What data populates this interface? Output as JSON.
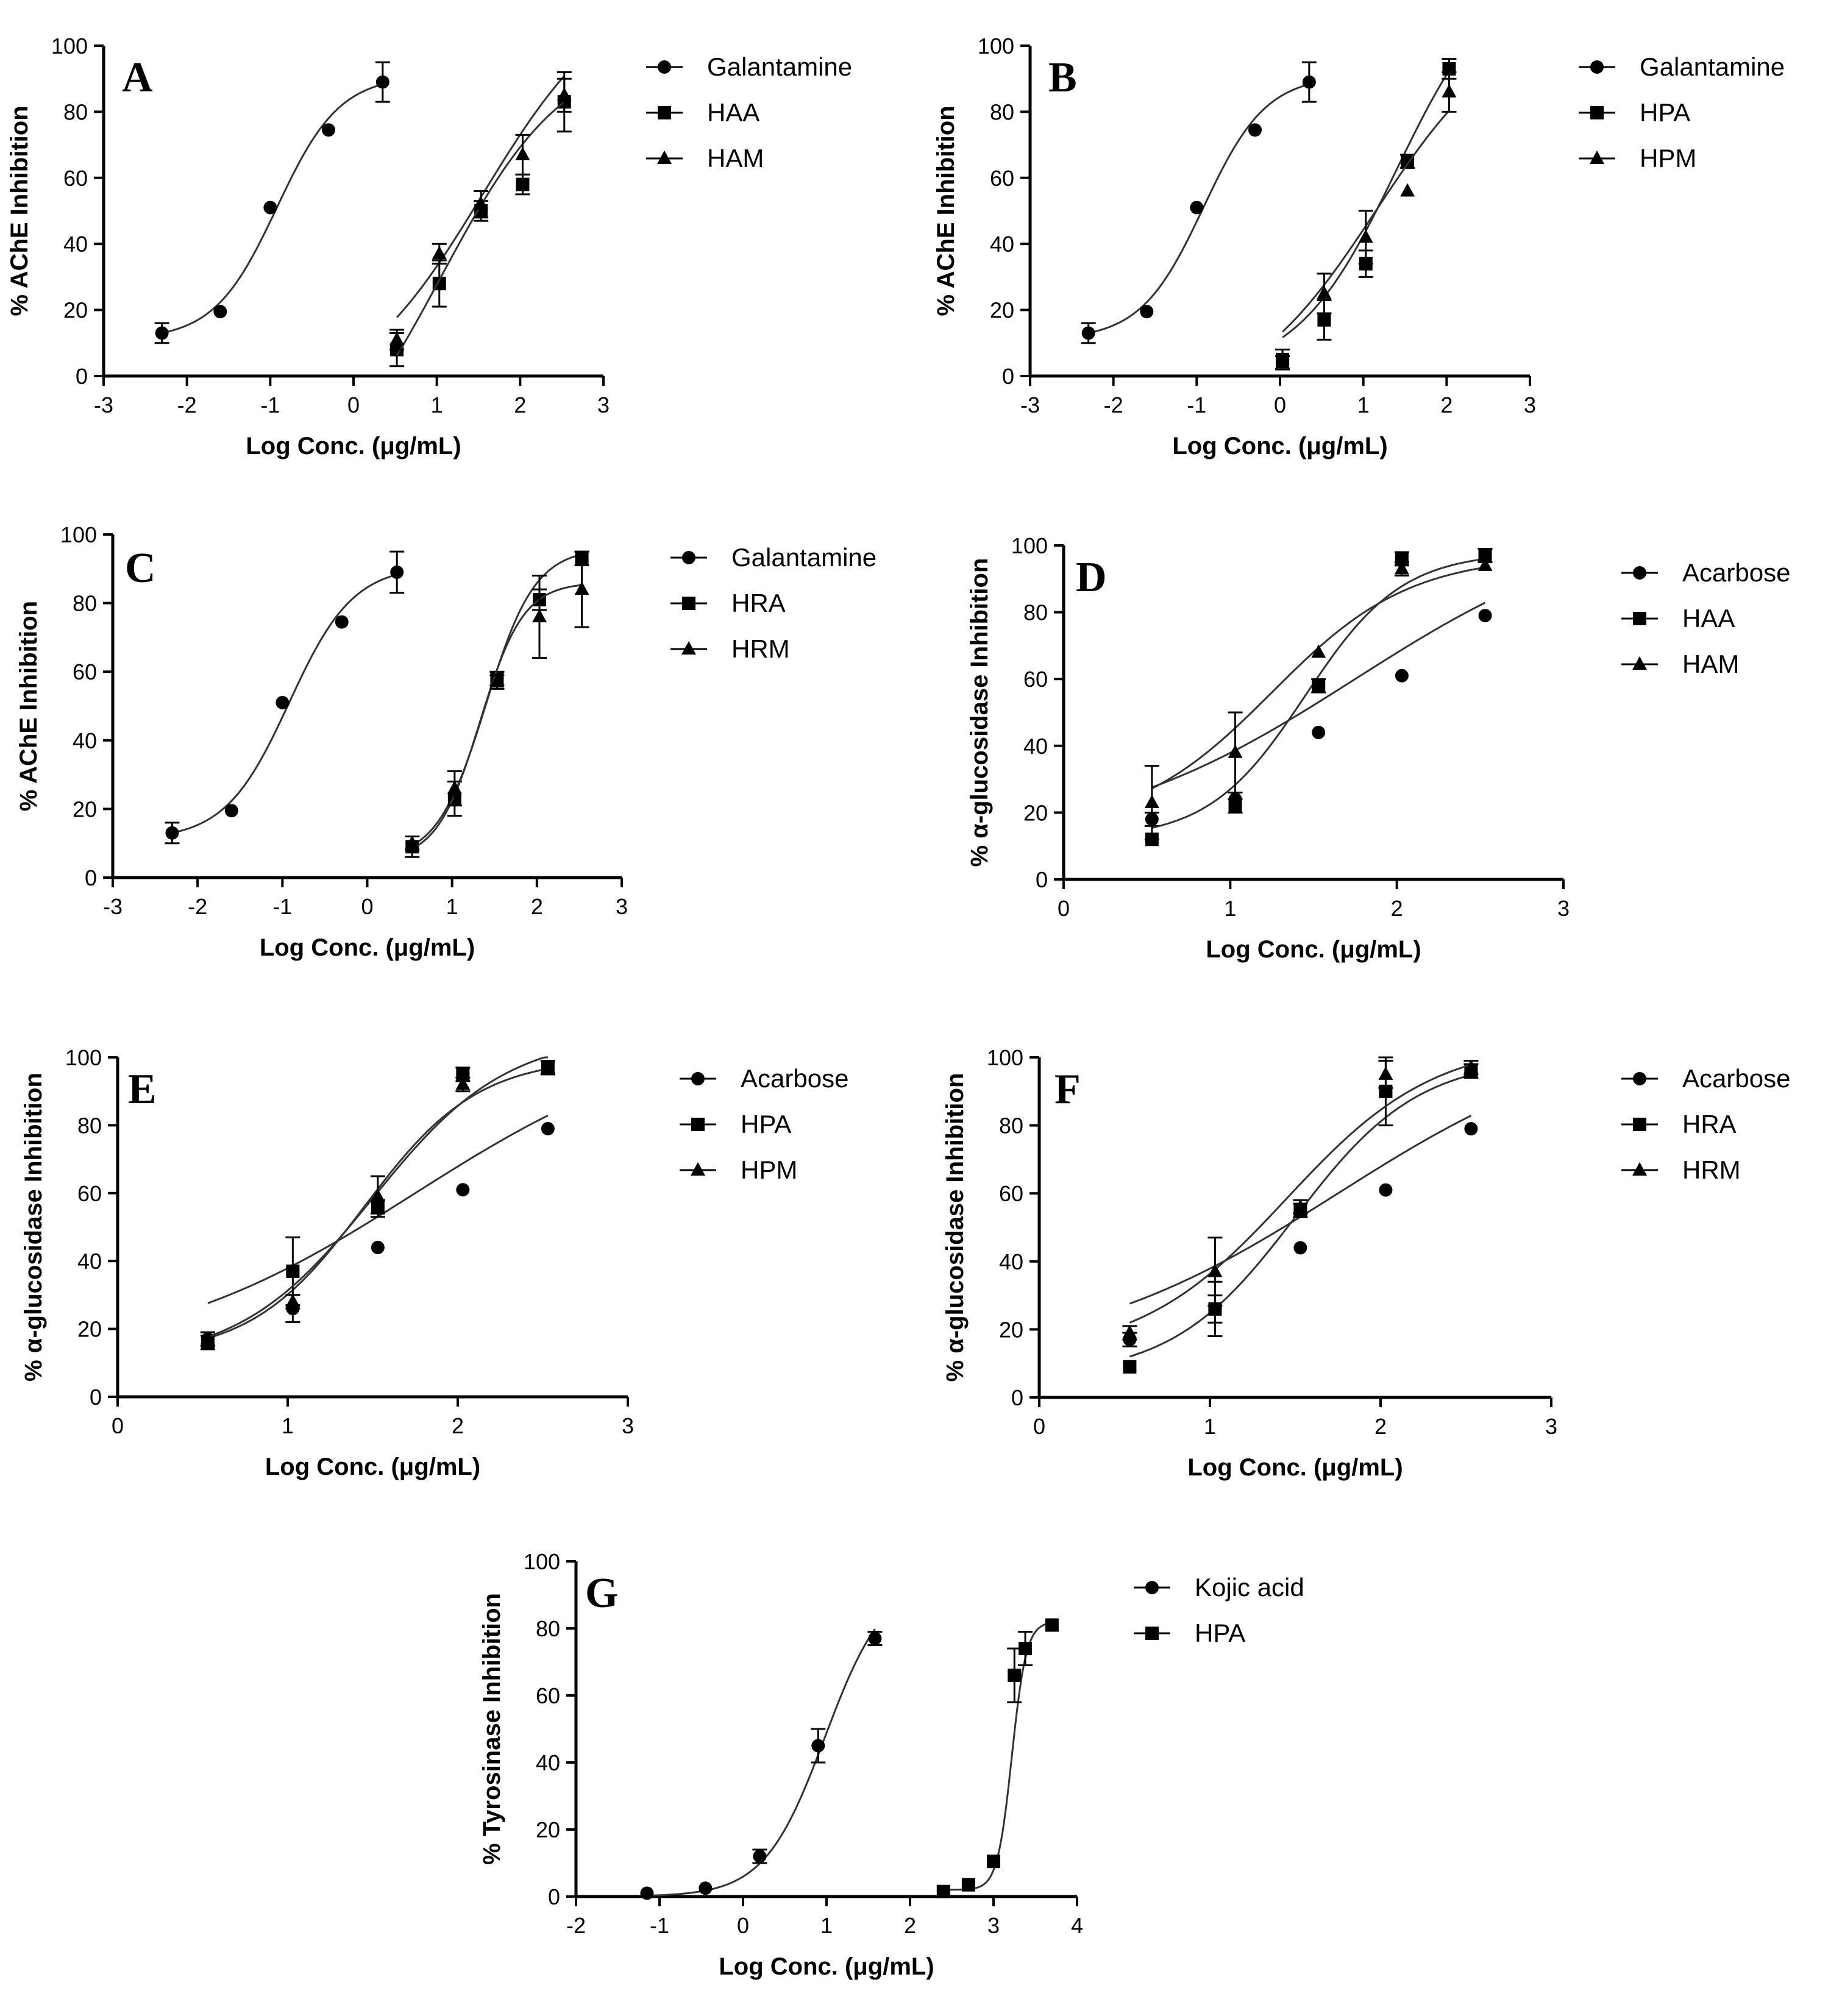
{
  "chart_data": [
    {
      "id": "A",
      "type": "scatter",
      "panel_label": "A",
      "xlabel": "Log Conc. (μg/mL)",
      "ylabel": "% AChE Inhibition",
      "xlim": [
        -3,
        3
      ],
      "ylim": [
        0,
        100
      ],
      "xticks": [
        "-3",
        "-2",
        "-1",
        "0",
        "1",
        "2",
        "3"
      ],
      "yticks": [
        "0",
        "20",
        "40",
        "60",
        "80",
        "100"
      ],
      "legend_position": "right",
      "series": [
        {
          "name": "Galantamine",
          "marker": "circle",
          "fit": {
            "bottom": 11,
            "top": 91,
            "logec50": -0.92,
            "hill": 1.15
          },
          "points": [
            {
              "x": -2.3,
              "y": 13,
              "err": 3
            },
            {
              "x": -1.6,
              "y": 19.5,
              "err": 0
            },
            {
              "x": -1.0,
              "y": 51,
              "err": 0
            },
            {
              "x": -0.3,
              "y": 74.5,
              "err": 0
            },
            {
              "x": 0.35,
              "y": 89,
              "err": 6
            }
          ]
        },
        {
          "name": "HAA",
          "marker": "square",
          "fit": {
            "bottom": -10,
            "top": 120,
            "logec50": 1.55,
            "hill": 0.55
          },
          "points": [
            {
              "x": 0.52,
              "y": 8,
              "err": 5
            },
            {
              "x": 1.03,
              "y": 28,
              "err": 7
            },
            {
              "x": 1.53,
              "y": 50,
              "err": 3
            },
            {
              "x": 2.03,
              "y": 58,
              "err": 3
            },
            {
              "x": 2.53,
              "y": 83,
              "err": 9
            }
          ]
        },
        {
          "name": "HAM",
          "marker": "triangle",
          "fit": {
            "bottom": -40,
            "top": 100,
            "logec50": 1.05,
            "hill": 0.58
          },
          "points": [
            {
              "x": 0.52,
              "y": 11,
              "err": 3
            },
            {
              "x": 1.03,
              "y": 37,
              "err": 3
            },
            {
              "x": 1.53,
              "y": 52,
              "err": 4
            },
            {
              "x": 2.03,
              "y": 67,
              "err": 6
            },
            {
              "x": 2.53,
              "y": 85,
              "err": 5
            }
          ]
        }
      ]
    },
    {
      "id": "B",
      "type": "scatter",
      "panel_label": "B",
      "xlabel": "Log Conc. (μg/mL)",
      "ylabel": "% AChE Inhibition",
      "xlim": [
        -3,
        3
      ],
      "ylim": [
        0,
        100
      ],
      "xticks": [
        "-3",
        "-2",
        "-1",
        "0",
        "1",
        "2",
        "3"
      ],
      "yticks": [
        "0",
        "20",
        "40",
        "60",
        "80",
        "100"
      ],
      "legend_position": "right",
      "series": [
        {
          "name": "Galantamine",
          "marker": "circle",
          "fit": {
            "bottom": 11,
            "top": 91,
            "logec50": -0.92,
            "hill": 1.15
          },
          "points": [
            {
              "x": -2.3,
              "y": 13,
              "err": 3
            },
            {
              "x": -1.6,
              "y": 19.5,
              "err": 0
            },
            {
              "x": -1.0,
              "y": 51,
              "err": 0
            },
            {
              "x": -0.3,
              "y": 74.5,
              "err": 0
            },
            {
              "x": 0.35,
              "y": 89,
              "err": 6
            }
          ]
        },
        {
          "name": "HPA",
          "marker": "square",
          "fit": {
            "bottom": 0,
            "top": 125,
            "logec50": 1.4,
            "hill": 0.72
          },
          "points": [
            {
              "x": 0.03,
              "y": 5,
              "err": 3
            },
            {
              "x": 0.53,
              "y": 17,
              "err": 6
            },
            {
              "x": 1.03,
              "y": 34,
              "err": 4
            },
            {
              "x": 1.53,
              "y": 65,
              "err": 2
            },
            {
              "x": 2.03,
              "y": 93,
              "err": 3
            }
          ]
        },
        {
          "name": "HPM",
          "marker": "triangle",
          "fit": {
            "bottom": -10,
            "top": 110,
            "logec50": 1.15,
            "hill": 0.55
          },
          "points": [
            {
              "x": 0.03,
              "y": 4,
              "err": 2
            },
            {
              "x": 0.53,
              "y": 25,
              "err": 6
            },
            {
              "x": 1.03,
              "y": 42,
              "err": 8
            },
            {
              "x": 1.53,
              "y": 56,
              "err": 0
            },
            {
              "x": 2.03,
              "y": 86,
              "err": 6
            }
          ]
        }
      ]
    },
    {
      "id": "C",
      "type": "scatter",
      "panel_label": "C",
      "xlabel": "Log Conc. (μg/mL)",
      "ylabel": "% AChE Inhibition",
      "xlim": [
        -3,
        3
      ],
      "ylim": [
        0,
        100
      ],
      "xticks": [
        "-3",
        "-2",
        "-1",
        "0",
        "1",
        "2",
        "3"
      ],
      "yticks": [
        "0",
        "20",
        "40",
        "60",
        "80",
        "100"
      ],
      "legend_position": "right",
      "series": [
        {
          "name": "Galantamine",
          "marker": "circle",
          "fit": {
            "bottom": 11,
            "top": 91,
            "logec50": -0.92,
            "hill": 1.15
          },
          "points": [
            {
              "x": -2.3,
              "y": 13,
              "err": 3
            },
            {
              "x": -1.6,
              "y": 19.5,
              "err": 0
            },
            {
              "x": -1.0,
              "y": 51,
              "err": 0
            },
            {
              "x": -0.3,
              "y": 74.5,
              "err": 0
            },
            {
              "x": 0.35,
              "y": 89,
              "err": 6
            }
          ]
        },
        {
          "name": "HRA",
          "marker": "square",
          "fit": {
            "bottom": 5,
            "top": 96,
            "logec50": 1.4,
            "hill": 1.5
          },
          "points": [
            {
              "x": 0.53,
              "y": 9,
              "err": 3
            },
            {
              "x": 1.03,
              "y": 23,
              "err": 5
            },
            {
              "x": 1.53,
              "y": 58,
              "err": 2
            },
            {
              "x": 2.03,
              "y": 81,
              "err": 3
            },
            {
              "x": 2.53,
              "y": 93,
              "err": 2
            }
          ]
        },
        {
          "name": "HRM",
          "marker": "triangle",
          "fit": {
            "bottom": 5,
            "top": 86,
            "logec50": 1.33,
            "hill": 1.7
          },
          "points": [
            {
              "x": 0.53,
              "y": 10,
              "err": 2
            },
            {
              "x": 1.03,
              "y": 26,
              "err": 5
            },
            {
              "x": 1.53,
              "y": 57,
              "err": 2
            },
            {
              "x": 2.03,
              "y": 76,
              "err": 12
            },
            {
              "x": 2.53,
              "y": 84,
              "err": 11
            }
          ]
        }
      ]
    },
    {
      "id": "D",
      "type": "scatter",
      "panel_label": "D",
      "xlabel": "Log Conc. (μg/mL)",
      "ylabel": "% α-glucosidase Inhibition",
      "xlim": [
        0,
        3
      ],
      "ylim": [
        0,
        100
      ],
      "xticks": [
        "0",
        "1",
        "2",
        "3"
      ],
      "yticks": [
        "0",
        "20",
        "40",
        "60",
        "80",
        "100"
      ],
      "legend_position": "right",
      "series": [
        {
          "name": "Acarbose",
          "marker": "circle",
          "fit": {
            "bottom": 10,
            "top": 110,
            "logec50": 1.75,
            "hill": 0.55
          },
          "points": [
            {
              "x": 0.53,
              "y": 18,
              "err": 2
            },
            {
              "x": 1.03,
              "y": 24,
              "err": 0
            },
            {
              "x": 1.53,
              "y": 44,
              "err": 0
            },
            {
              "x": 2.03,
              "y": 61,
              "err": 0
            },
            {
              "x": 2.53,
              "y": 79,
              "err": 0
            }
          ]
        },
        {
          "name": "HAA",
          "marker": "square",
          "fit": {
            "bottom": 12,
            "top": 98,
            "logec50": 1.45,
            "hill": 1.5
          },
          "points": [
            {
              "x": 0.53,
              "y": 12,
              "err": 0
            },
            {
              "x": 1.03,
              "y": 22,
              "err": 2
            },
            {
              "x": 1.53,
              "y": 58,
              "err": 2
            },
            {
              "x": 2.03,
              "y": 96,
              "err": 2
            },
            {
              "x": 2.53,
              "y": 97,
              "err": 2
            }
          ]
        },
        {
          "name": "HAM",
          "marker": "triangle",
          "fit": {
            "bottom": 15,
            "top": 97,
            "logec50": 1.25,
            "hill": 1.05
          },
          "points": [
            {
              "x": 0.53,
              "y": 23,
              "err": 11
            },
            {
              "x": 1.03,
              "y": 38,
              "err": 12
            },
            {
              "x": 1.53,
              "y": 68,
              "err": 0
            },
            {
              "x": 2.03,
              "y": 93,
              "err": 2
            },
            {
              "x": 2.53,
              "y": 94,
              "err": 0
            }
          ]
        }
      ]
    },
    {
      "id": "E",
      "type": "scatter",
      "panel_label": "E",
      "xlabel": "Log Conc. (μg/mL)",
      "ylabel": "% α-glucosidase Inhibition",
      "xlim": [
        0,
        3
      ],
      "ylim": [
        0,
        100
      ],
      "xticks": [
        "0",
        "1",
        "2",
        "3"
      ],
      "yticks": [
        "0",
        "20",
        "40",
        "60",
        "80",
        "100"
      ],
      "legend_position": "right",
      "series": [
        {
          "name": "Acarbose",
          "marker": "circle",
          "fit": {
            "bottom": 10,
            "top": 110,
            "logec50": 1.75,
            "hill": 0.55
          },
          "points": [
            {
              "x": 0.53,
              "y": 17,
              "err": 2
            },
            {
              "x": 1.03,
              "y": 26,
              "err": 4
            },
            {
              "x": 1.53,
              "y": 44,
              "err": 0
            },
            {
              "x": 2.03,
              "y": 61,
              "err": 0
            },
            {
              "x": 2.53,
              "y": 79,
              "err": 0
            }
          ]
        },
        {
          "name": "HPA",
          "marker": "square",
          "fit": {
            "bottom": 12,
            "top": 100,
            "logec50": 1.45,
            "hill": 1.3
          },
          "points": [
            {
              "x": 0.53,
              "y": 16,
              "err": 2
            },
            {
              "x": 1.03,
              "y": 37,
              "err": 10
            },
            {
              "x": 1.53,
              "y": 56,
              "err": 2
            },
            {
              "x": 2.03,
              "y": 95,
              "err": 2
            },
            {
              "x": 2.53,
              "y": 97,
              "err": 2
            }
          ]
        },
        {
          "name": "HPM",
          "marker": "triangle",
          "fit": {
            "bottom": 10,
            "top": 107,
            "logec50": 1.5,
            "hill": 1.1
          },
          "points": [
            {
              "x": 0.53,
              "y": 17,
              "err": 2
            },
            {
              "x": 1.03,
              "y": 28,
              "err": 2
            },
            {
              "x": 1.53,
              "y": 59,
              "err": 6
            },
            {
              "x": 2.03,
              "y": 92,
              "err": 2
            },
            {
              "x": 2.53,
              "y": 97,
              "err": 2
            }
          ]
        }
      ]
    },
    {
      "id": "F",
      "type": "scatter",
      "panel_label": "F",
      "xlabel": "Log Conc. (μg/mL)",
      "ylabel": "% α-glucosidase Inhibition",
      "xlim": [
        0,
        3
      ],
      "ylim": [
        0,
        100
      ],
      "xticks": [
        "0",
        "1",
        "2",
        "3"
      ],
      "yticks": [
        "0",
        "20",
        "40",
        "60",
        "80",
        "100"
      ],
      "legend_position": "right",
      "series": [
        {
          "name": "Acarbose",
          "marker": "circle",
          "fit": {
            "bottom": 10,
            "top": 110,
            "logec50": 1.75,
            "hill": 0.55
          },
          "points": [
            {
              "x": 0.53,
              "y": 17,
              "err": 2
            },
            {
              "x": 1.03,
              "y": 26,
              "err": 4
            },
            {
              "x": 1.53,
              "y": 44,
              "err": 0
            },
            {
              "x": 2.03,
              "y": 61,
              "err": 0
            },
            {
              "x": 2.53,
              "y": 79,
              "err": 0
            }
          ]
        },
        {
          "name": "HRA",
          "marker": "square",
          "fit": {
            "bottom": 6,
            "top": 100,
            "logec50": 1.5,
            "hill": 1.2
          },
          "points": [
            {
              "x": 0.53,
              "y": 9,
              "err": 0
            },
            {
              "x": 1.03,
              "y": 26,
              "err": 8
            },
            {
              "x": 1.53,
              "y": 55,
              "err": 2
            },
            {
              "x": 2.03,
              "y": 90,
              "err": 10
            },
            {
              "x": 2.53,
              "y": 96,
              "err": 2
            }
          ]
        },
        {
          "name": "HRM",
          "marker": "triangle",
          "fit": {
            "bottom": 12,
            "top": 105,
            "logec50": 1.45,
            "hill": 1.0
          },
          "points": [
            {
              "x": 0.53,
              "y": 19,
              "err": 2
            },
            {
              "x": 1.03,
              "y": 37,
              "err": 10
            },
            {
              "x": 1.53,
              "y": 56,
              "err": 2
            },
            {
              "x": 2.03,
              "y": 95,
              "err": 4
            },
            {
              "x": 2.53,
              "y": 97,
              "err": 2
            }
          ]
        }
      ]
    },
    {
      "id": "G",
      "type": "scatter",
      "panel_label": "G",
      "xlabel": "Log Conc. (μg/mL)",
      "ylabel": "% Tyrosinase Inhibition",
      "xlim": [
        -2,
        4
      ],
      "ylim": [
        0,
        100
      ],
      "xticks": [
        "-2",
        "-1",
        "0",
        "1",
        "2",
        "3",
        "4"
      ],
      "yticks": [
        "0",
        "20",
        "40",
        "60",
        "80",
        "100"
      ],
      "legend_position": "right",
      "series": [
        {
          "name": "Kojic acid",
          "marker": "circle",
          "fit": {
            "bottom": 0,
            "top": 95,
            "logec50": 0.98,
            "hill": 1.2
          },
          "points": [
            {
              "x": -1.15,
              "y": 1,
              "err": 0
            },
            {
              "x": -0.45,
              "y": 2.5,
              "err": 0
            },
            {
              "x": 0.2,
              "y": 12,
              "err": 2
            },
            {
              "x": 0.9,
              "y": 45,
              "err": 5
            },
            {
              "x": 1.58,
              "y": 77,
              "err": 2
            }
          ]
        },
        {
          "name": "HPA",
          "marker": "square",
          "fit": {
            "bottom": 2,
            "top": 82,
            "logec50": 3.22,
            "hill": 5.0
          },
          "points": [
            {
              "x": 2.4,
              "y": 1.5,
              "err": 0
            },
            {
              "x": 2.7,
              "y": 3.5,
              "err": 0
            },
            {
              "x": 3.0,
              "y": 10.5,
              "err": 0
            },
            {
              "x": 3.25,
              "y": 66,
              "err": 8
            },
            {
              "x": 3.38,
              "y": 74,
              "err": 5
            },
            {
              "x": 3.7,
              "y": 81,
              "err": 0
            }
          ]
        }
      ]
    }
  ]
}
